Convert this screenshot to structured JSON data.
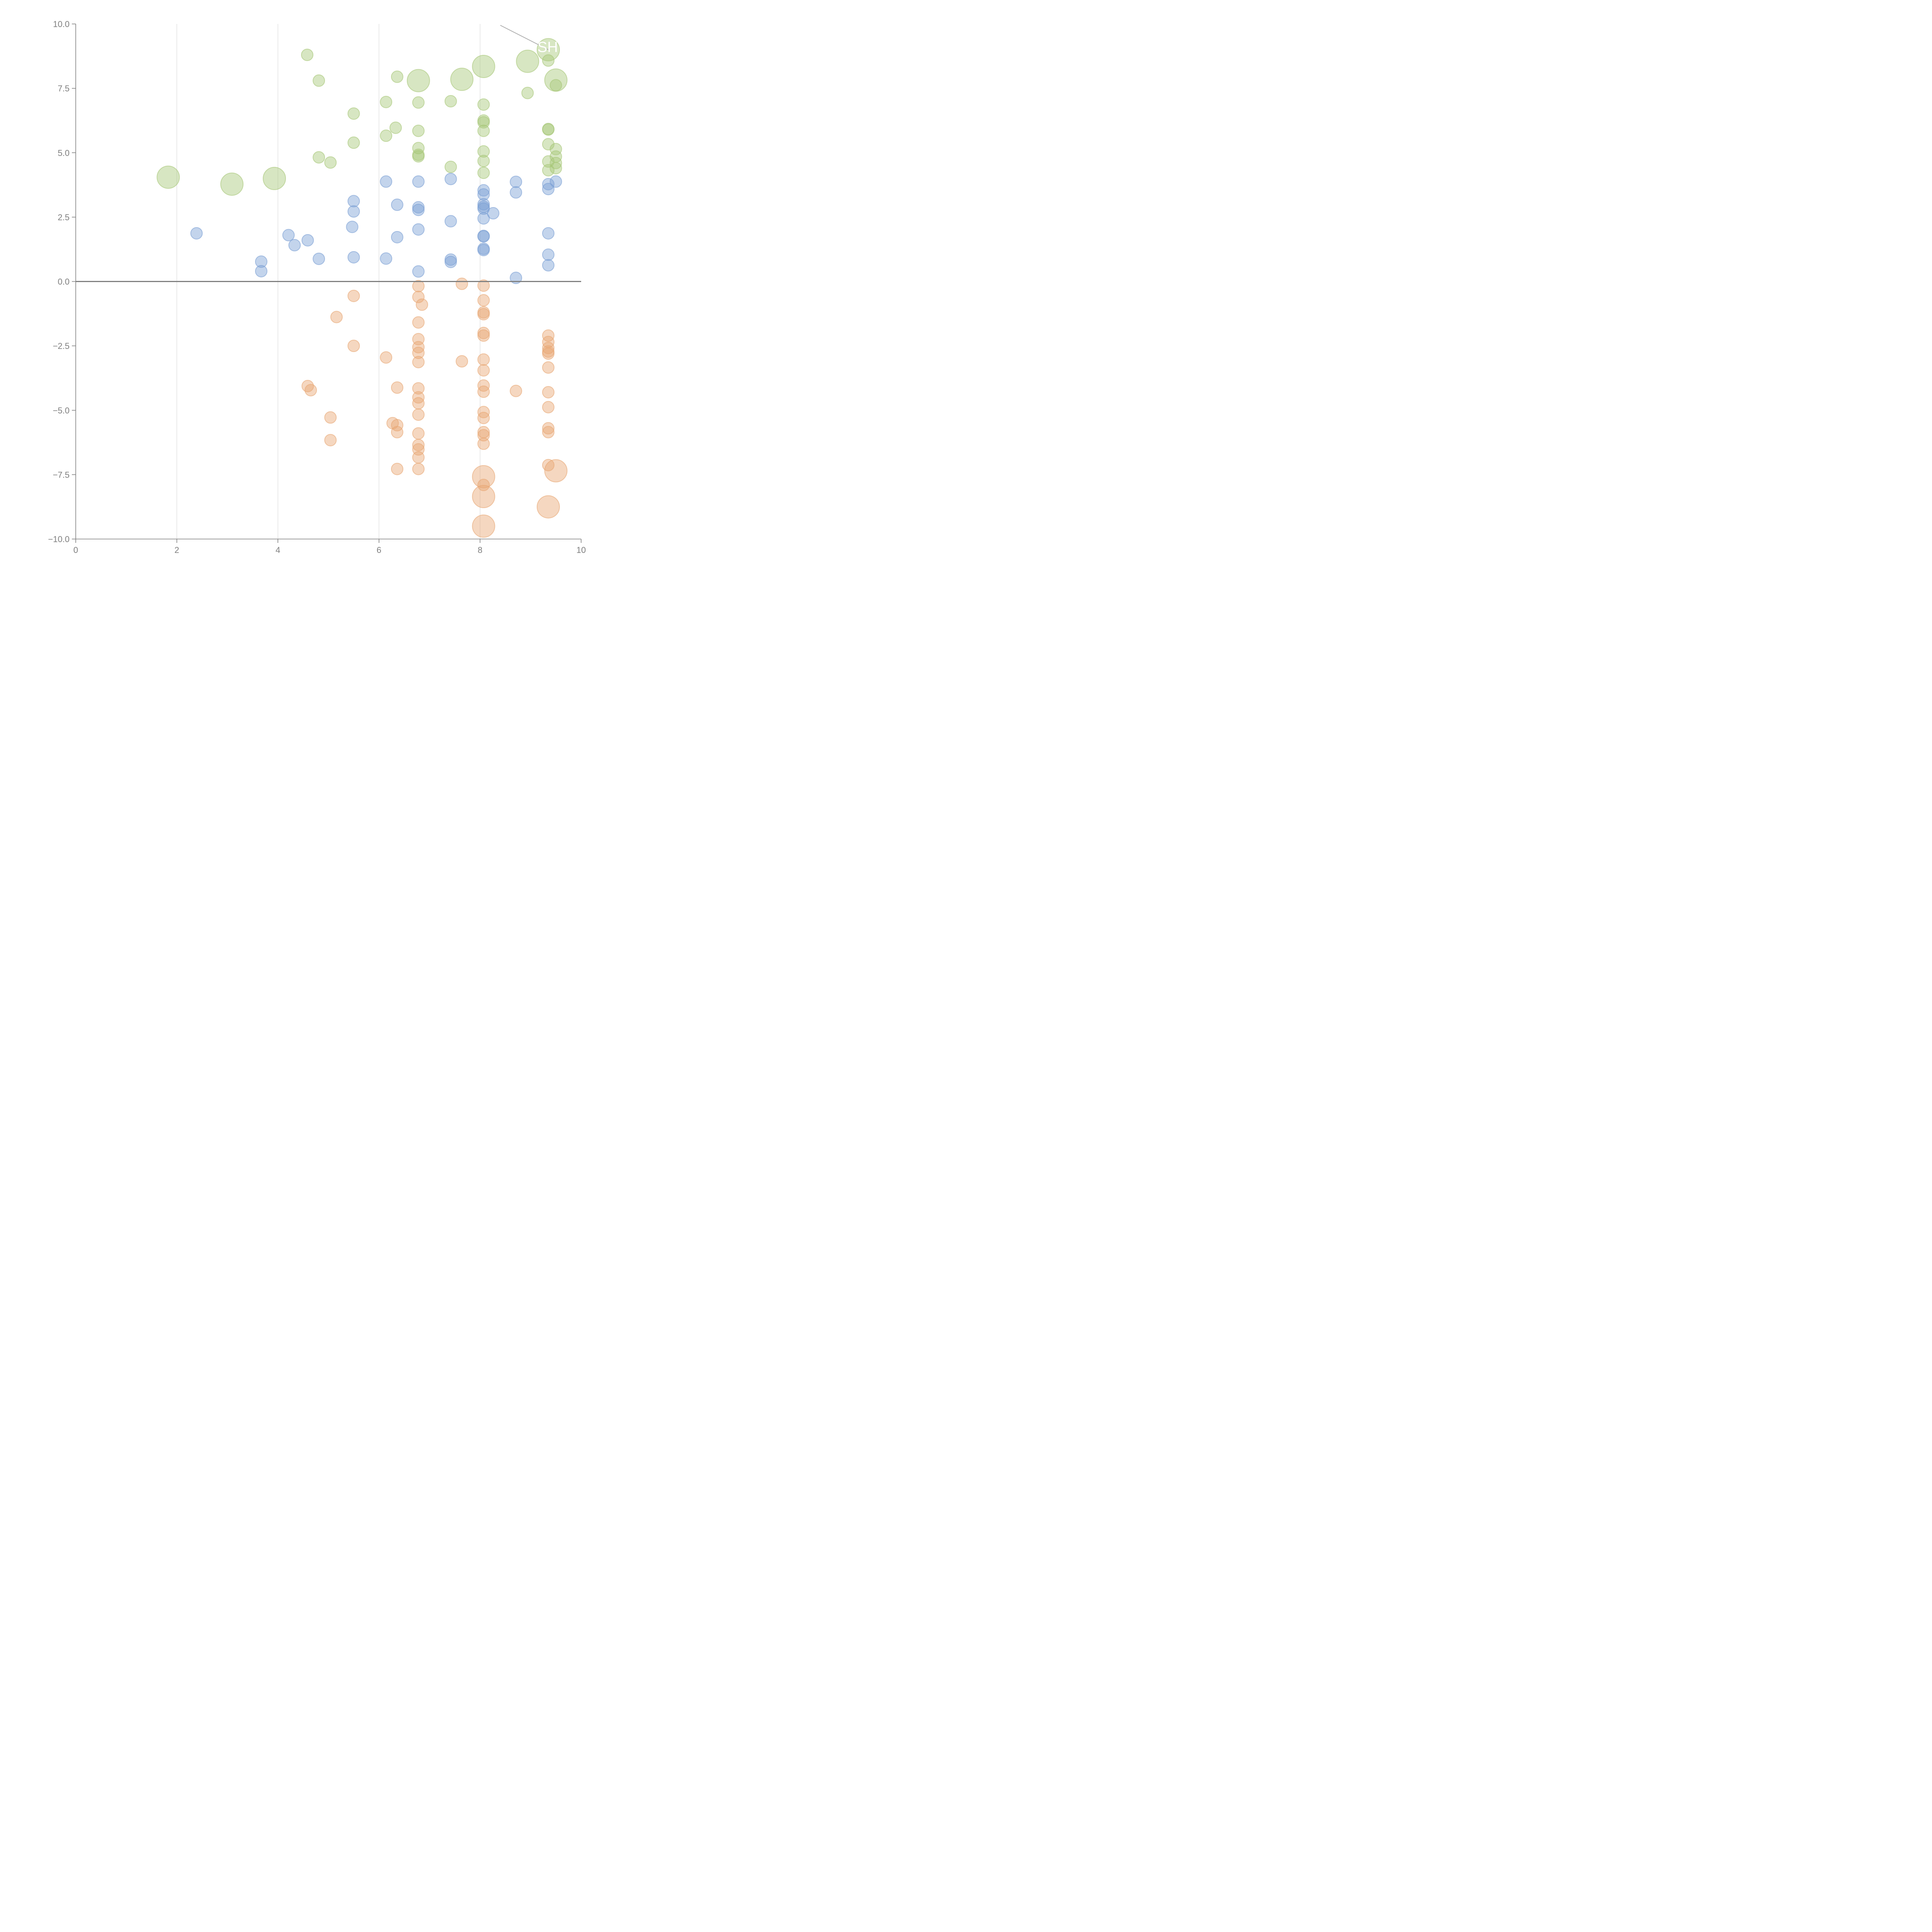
{
  "chart_data": {
    "type": "scatter",
    "title": "",
    "xlabel": "",
    "ylabel": "",
    "xlim": [
      0,
      10
    ],
    "ylim": [
      -10,
      10
    ],
    "x_ticks": [
      "0",
      "2",
      "4",
      "6",
      "8",
      "10"
    ],
    "x_tick_values": [
      0,
      2,
      4,
      6,
      8,
      10
    ],
    "y_ticks": [
      "10.0",
      "7.5",
      "5.0",
      "2.5",
      "0.0",
      "−2.5",
      "−5.0",
      "−7.5",
      "−10.0"
    ],
    "y_tick_values": [
      10,
      7.5,
      5,
      2.5,
      0,
      -2.5,
      -5,
      -7.5,
      -10
    ],
    "grid": "vertical",
    "reference_line_y": 0,
    "legend": "none",
    "annotation": {
      "text": "SH",
      "point": [
        9.35,
        9.0
      ],
      "from": [
        8.4,
        9.95
      ]
    },
    "series": [
      {
        "name": "green",
        "color": "#a6c777",
        "points": [
          [
            4.58,
            8.8,
            1
          ],
          [
            4.81,
            7.8,
            1
          ],
          [
            6.36,
            7.95,
            1
          ],
          [
            6.78,
            7.8,
            2.5
          ],
          [
            7.64,
            7.85,
            2.5
          ],
          [
            8.07,
            8.35,
            2.5
          ],
          [
            8.94,
            8.55,
            2.5
          ],
          [
            9.35,
            9.0,
            2.5
          ],
          [
            9.35,
            8.58,
            1
          ],
          [
            9.5,
            7.82,
            2.5
          ],
          [
            9.5,
            7.62,
            1
          ],
          [
            6.14,
            6.97,
            1
          ],
          [
            6.78,
            6.95,
            1
          ],
          [
            7.42,
            7.0,
            1
          ],
          [
            8.07,
            6.87,
            1
          ],
          [
            8.94,
            7.32,
            1
          ],
          [
            5.5,
            6.52,
            1
          ],
          [
            6.33,
            5.97,
            1
          ],
          [
            6.14,
            5.66,
            1
          ],
          [
            6.78,
            5.85,
            1
          ],
          [
            8.07,
            6.25,
            1
          ],
          [
            8.07,
            6.18,
            1
          ],
          [
            8.07,
            5.85,
            1
          ],
          [
            9.35,
            5.92,
            1
          ],
          [
            9.35,
            5.9,
            1
          ],
          [
            5.5,
            5.39,
            1
          ],
          [
            4.81,
            4.82,
            1
          ],
          [
            5.04,
            4.62,
            1
          ],
          [
            6.78,
            5.18,
            1
          ],
          [
            6.78,
            4.92,
            1
          ],
          [
            6.78,
            4.86,
            1
          ],
          [
            7.42,
            4.45,
            1
          ],
          [
            8.07,
            5.05,
            1
          ],
          [
            8.07,
            4.68,
            1
          ],
          [
            8.07,
            4.22,
            1
          ],
          [
            9.35,
            5.33,
            1
          ],
          [
            9.5,
            5.14,
            1
          ],
          [
            9.5,
            4.85,
            1
          ],
          [
            9.35,
            4.66,
            1
          ],
          [
            9.5,
            4.6,
            1
          ],
          [
            9.5,
            4.4,
            1
          ],
          [
            9.35,
            4.32,
            1
          ],
          [
            1.83,
            4.05,
            2.5
          ],
          [
            3.09,
            3.78,
            2.5
          ],
          [
            3.93,
            4.0,
            2.5
          ]
        ]
      },
      {
        "name": "blue",
        "color": "#7a9fd4",
        "points": [
          [
            2.39,
            1.87,
            1
          ],
          [
            3.67,
            0.77,
            1
          ],
          [
            3.67,
            0.4,
            1
          ],
          [
            4.21,
            1.8,
            1
          ],
          [
            4.33,
            1.41,
            1
          ],
          [
            4.59,
            1.6,
            1
          ],
          [
            4.81,
            0.88,
            1
          ],
          [
            5.5,
            3.12,
            1
          ],
          [
            5.5,
            2.72,
            1
          ],
          [
            5.47,
            2.12,
            1
          ],
          [
            5.5,
            0.94,
            1
          ],
          [
            6.14,
            3.88,
            1
          ],
          [
            6.14,
            0.89,
            1
          ],
          [
            6.36,
            2.98,
            1
          ],
          [
            6.36,
            1.72,
            1
          ],
          [
            6.78,
            3.88,
            1
          ],
          [
            6.78,
            2.88,
            1
          ],
          [
            6.78,
            2.78,
            1
          ],
          [
            6.78,
            2.02,
            1
          ],
          [
            6.78,
            0.39,
            1
          ],
          [
            7.42,
            3.98,
            1
          ],
          [
            7.42,
            2.34,
            1
          ],
          [
            7.42,
            0.85,
            1
          ],
          [
            7.42,
            0.76,
            1
          ],
          [
            8.07,
            3.54,
            1
          ],
          [
            8.07,
            3.38,
            1
          ],
          [
            8.07,
            3.0,
            1
          ],
          [
            8.07,
            2.9,
            1
          ],
          [
            8.07,
            2.83,
            1
          ],
          [
            8.07,
            2.45,
            1
          ],
          [
            8.07,
            1.77,
            1
          ],
          [
            8.07,
            1.75,
            1
          ],
          [
            8.07,
            1.27,
            1
          ],
          [
            8.07,
            1.22,
            1
          ],
          [
            8.26,
            2.65,
            1
          ],
          [
            8.71,
            3.87,
            1
          ],
          [
            8.71,
            3.46,
            1
          ],
          [
            8.71,
            0.14,
            1
          ],
          [
            9.35,
            3.78,
            1
          ],
          [
            9.35,
            3.59,
            1
          ],
          [
            9.5,
            3.88,
            1
          ],
          [
            9.35,
            1.87,
            1
          ],
          [
            9.35,
            1.04,
            1
          ],
          [
            9.35,
            0.63,
            1
          ]
        ]
      },
      {
        "name": "orange",
        "color": "#e8a673",
        "points": [
          [
            5.5,
            -0.56,
            1
          ],
          [
            5.16,
            -1.38,
            1
          ],
          [
            5.5,
            -2.5,
            1
          ],
          [
            4.59,
            -4.06,
            1
          ],
          [
            4.65,
            -4.22,
            1
          ],
          [
            5.04,
            -5.28,
            1
          ],
          [
            5.04,
            -6.16,
            1
          ],
          [
            6.14,
            -2.95,
            1
          ],
          [
            6.36,
            -4.12,
            1
          ],
          [
            6.27,
            -5.5,
            1
          ],
          [
            6.36,
            -5.58,
            1
          ],
          [
            6.36,
            -5.85,
            1
          ],
          [
            6.36,
            -7.28,
            1
          ],
          [
            6.78,
            -0.18,
            1
          ],
          [
            6.78,
            -0.6,
            1
          ],
          [
            6.85,
            -0.9,
            1
          ],
          [
            6.78,
            -1.59,
            1
          ],
          [
            6.78,
            -2.24,
            1
          ],
          [
            6.78,
            -2.55,
            1
          ],
          [
            6.78,
            -2.77,
            1
          ],
          [
            6.78,
            -3.13,
            1
          ],
          [
            6.78,
            -4.15,
            1
          ],
          [
            6.78,
            -4.5,
            1
          ],
          [
            6.78,
            -4.73,
            1
          ],
          [
            6.78,
            -5.17,
            1
          ],
          [
            6.78,
            -5.9,
            1
          ],
          [
            6.78,
            -6.35,
            1
          ],
          [
            6.78,
            -6.52,
            1
          ],
          [
            6.78,
            -6.83,
            1
          ],
          [
            6.78,
            -7.28,
            1
          ],
          [
            7.64,
            -0.09,
            1
          ],
          [
            7.64,
            -3.1,
            1
          ],
          [
            8.07,
            -0.16,
            1
          ],
          [
            8.07,
            -0.73,
            1
          ],
          [
            8.07,
            -1.2,
            1
          ],
          [
            8.07,
            -1.27,
            1
          ],
          [
            8.07,
            -2.0,
            1
          ],
          [
            8.07,
            -2.1,
            1
          ],
          [
            8.07,
            -3.03,
            1
          ],
          [
            8.07,
            -3.45,
            1
          ],
          [
            8.07,
            -4.04,
            1
          ],
          [
            8.07,
            -4.28,
            1
          ],
          [
            8.07,
            -5.07,
            1
          ],
          [
            8.07,
            -5.3,
            1
          ],
          [
            8.07,
            -5.85,
            1
          ],
          [
            8.07,
            -5.97,
            1
          ],
          [
            8.07,
            -6.3,
            1
          ],
          [
            8.07,
            -7.58,
            2.5
          ],
          [
            8.07,
            -7.9,
            1
          ],
          [
            8.07,
            -8.35,
            2.5
          ],
          [
            8.07,
            -9.5,
            2.5
          ],
          [
            8.71,
            -4.25,
            1
          ],
          [
            9.35,
            -2.1,
            1
          ],
          [
            9.35,
            -2.35,
            1
          ],
          [
            9.35,
            -2.58,
            1
          ],
          [
            9.35,
            -2.72,
            1
          ],
          [
            9.35,
            -2.8,
            1
          ],
          [
            9.35,
            -3.34,
            1
          ],
          [
            9.35,
            -4.3,
            1
          ],
          [
            9.35,
            -4.88,
            1
          ],
          [
            9.35,
            -5.7,
            1
          ],
          [
            9.35,
            -5.85,
            1
          ],
          [
            9.35,
            -7.13,
            1
          ],
          [
            9.5,
            -7.35,
            2.5
          ],
          [
            9.35,
            -8.75,
            2.5
          ]
        ]
      }
    ]
  }
}
